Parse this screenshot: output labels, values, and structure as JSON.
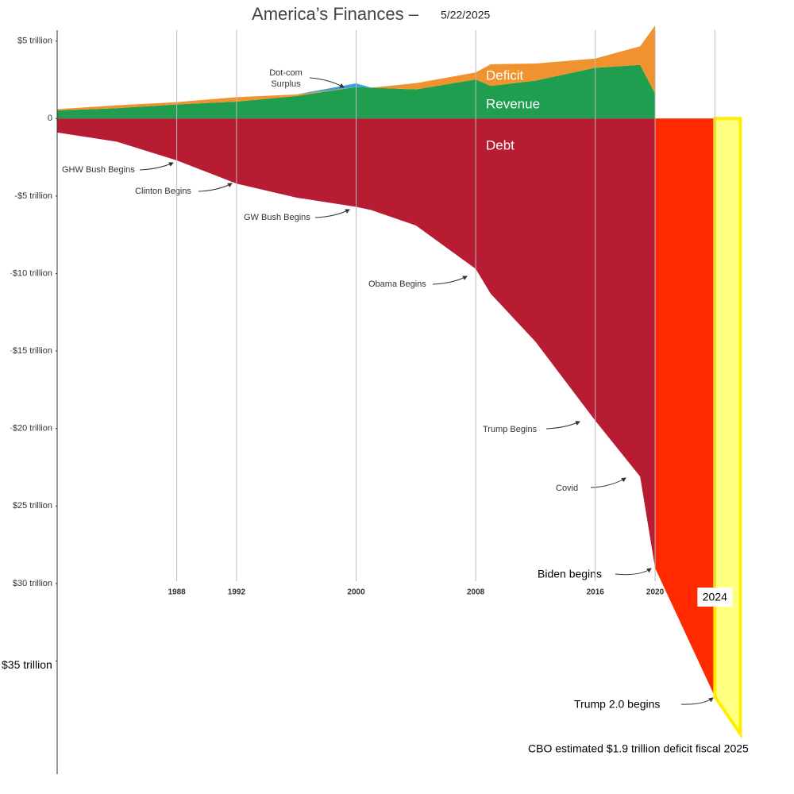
{
  "chart_data": {
    "type": "area",
    "title": "America’s Finances –",
    "subtitle": "5/22/2025",
    "x": [
      1980,
      1984,
      1988,
      1992,
      1996,
      2000,
      2001,
      2004,
      2008,
      2009,
      2012,
      2016,
      2019,
      2020
    ],
    "series": [
      {
        "name": "Revenue",
        "color": "#1f9e4f",
        "values": [
          0.52,
          0.67,
          0.91,
          1.09,
          1.45,
          2.03,
          1.99,
          1.88,
          2.52,
          2.1,
          2.45,
          3.27,
          3.46,
          1.6
        ]
      },
      {
        "name": "Deficit",
        "color": "#f0922e",
        "values": [
          0.08,
          0.18,
          0.15,
          0.29,
          0.1,
          0,
          0,
          0.4,
          0.45,
          1.4,
          1.1,
          0.6,
          1.2,
          4.4
        ]
      },
      {
        "color": "#3aa0d8",
        "values": [
          0,
          0,
          0,
          0,
          0,
          0.24,
          0,
          0,
          0,
          0,
          0,
          0,
          0,
          0
        ]
      },
      {
        "name": "Debt",
        "color": "#b71c33",
        "values": [
          -0.9,
          -1.5,
          -2.7,
          -4.2,
          -5.1,
          -5.7,
          -5.9,
          -6.9,
          -9.7,
          -11.3,
          -14.4,
          -19.5,
          -23.1,
          -29
        ]
      },
      {
        "color": "#ff2a00",
        "x": [
          2020,
          2024
        ],
        "values": [
          -29,
          -37.3
        ]
      },
      {
        "color": "#ffff80",
        "x": [
          2024,
          2025.7
        ],
        "values": [
          -37.3,
          -39.7
        ]
      }
    ],
    "xlim": [
      1980,
      2026
    ],
    "ylim": [
      -42.3,
      5.7
    ],
    "xticks": [
      1988,
      1992,
      2000,
      2008,
      2016,
      2020,
      2024
    ],
    "yticks": [
      {
        "value": 5,
        "label": "$5 trillion"
      },
      0,
      {
        "value": -5,
        "label": "-$5 trillion"
      },
      {
        "value": -10,
        "label": "·$10 trillion"
      },
      {
        "value": -15,
        "label": "·$15 trillion"
      },
      {
        "value": -20,
        "label": "·$20 trillion"
      },
      {
        "value": -25,
        "label": "$25 trillion"
      },
      {
        "value": -30,
        "label": "$30 trillion"
      },
      {
        "value": -35,
        "label": "$35 trillion"
      }
    ],
    "grid": true,
    "annotations": [
      "Dot-com",
      "Surplus",
      "GHW Bush Begins",
      "Clinton Begins",
      "GW Bush Begins",
      "Obama Begins",
      "Trump Begins",
      "Covid",
      "Biden begins",
      "Trump 2.0 begins",
      "CBO estimated $1.9 trillion deficit fiscal 2025"
    ]
  }
}
